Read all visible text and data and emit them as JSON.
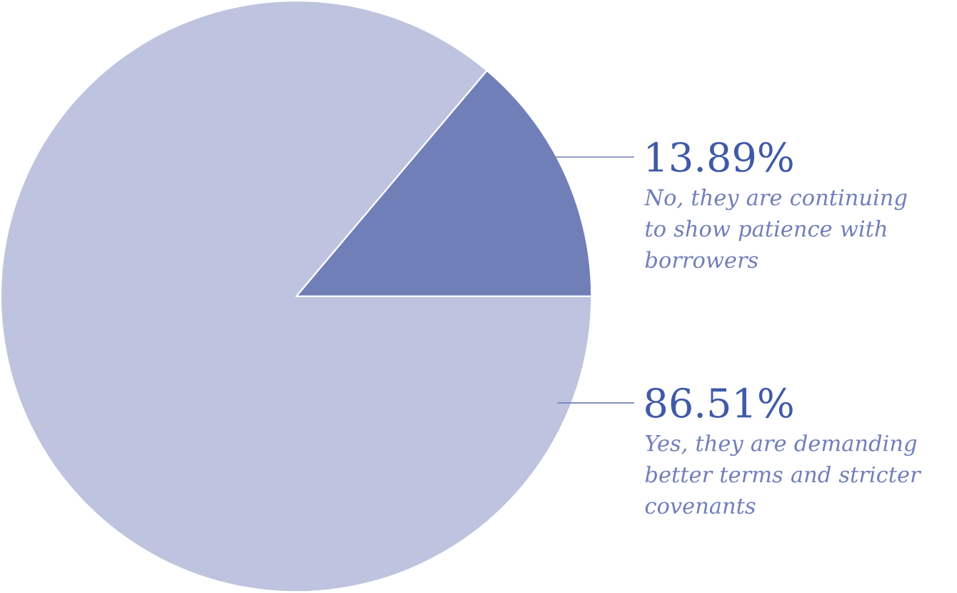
{
  "chart_data": {
    "type": "pie",
    "categories": [
      "No, they are continuing to show patience with borrowers",
      "Yes, they are demanding better terms and stricter covenants"
    ],
    "values": [
      13.89,
      86.51
    ],
    "colors": [
      "#717fb9",
      "#bec4df"
    ],
    "value_labels": [
      "13.89%",
      "86.51%"
    ]
  }
}
